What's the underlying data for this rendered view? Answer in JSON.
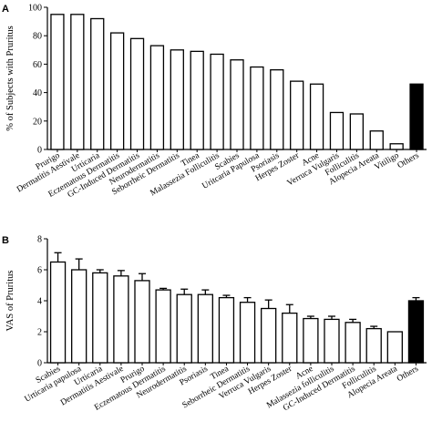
{
  "chart_data": [
    {
      "type": "bar",
      "panel_label": "A",
      "ylabel": "% of Subjects with Pruritus",
      "ylim": [
        0,
        100
      ],
      "yticks": [
        "0",
        "20",
        "40",
        "60",
        "80",
        "100"
      ],
      "categories": [
        "Prurigo",
        "Dermatitis Aestivale",
        "Urticaria",
        "Eczematous Dermatitis",
        "GC-Induced Dermatitis",
        "Neurodermatitis",
        "Seborrheic Dermatitis",
        "Tinea",
        "Malassezia Folliculitis",
        "Scabies",
        "Uritcaria Papulosa",
        "Psoriasis",
        "Herpes Zoster",
        "Acne",
        "Verruca Vulgaris",
        "Folliculitis",
        "Alopecia Areata",
        "Vitiligo",
        "Others"
      ],
      "values": [
        95,
        95,
        92,
        82,
        78,
        73,
        70,
        69,
        67,
        63,
        58,
        56,
        48,
        46,
        26,
        25,
        13,
        4,
        46
      ],
      "highlight_last": true
    },
    {
      "type": "bar",
      "panel_label": "B",
      "ylabel": "VAS of Pruritus",
      "ylim": [
        0,
        8
      ],
      "yticks": [
        "0",
        "2",
        "4",
        "6",
        "8"
      ],
      "categories": [
        "Scabies",
        "Urticaria papulosa",
        "Urticaria",
        "Dermatitis Aestivale",
        "Prurigo",
        "Eczematous Dermatitis",
        "Neurodermatitis",
        "Psoriasis",
        "Tinea",
        "Seborrheic Dermatitis",
        "Verruca Vulgaris",
        "Herpes Zoster",
        "Acne",
        "Malassezia folliculitis",
        "GC-Induced Dermatitis",
        "Folliculitis",
        "Alopecia Areata",
        "Others"
      ],
      "values": [
        6.5,
        6.0,
        5.8,
        5.6,
        5.3,
        4.7,
        4.4,
        4.4,
        4.2,
        3.9,
        3.5,
        3.2,
        2.85,
        2.8,
        2.6,
        2.2,
        2.0,
        4.0
      ],
      "errors": [
        0.6,
        0.7,
        0.2,
        0.35,
        0.45,
        0.1,
        0.35,
        0.3,
        0.15,
        0.3,
        0.55,
        0.55,
        0.15,
        0.2,
        0.2,
        0.15,
        0.0,
        0.2
      ],
      "highlight_last": true
    }
  ],
  "colors": {
    "bar_fill": "#ffffff",
    "highlight_fill": "#000000",
    "stroke": "#000000"
  }
}
